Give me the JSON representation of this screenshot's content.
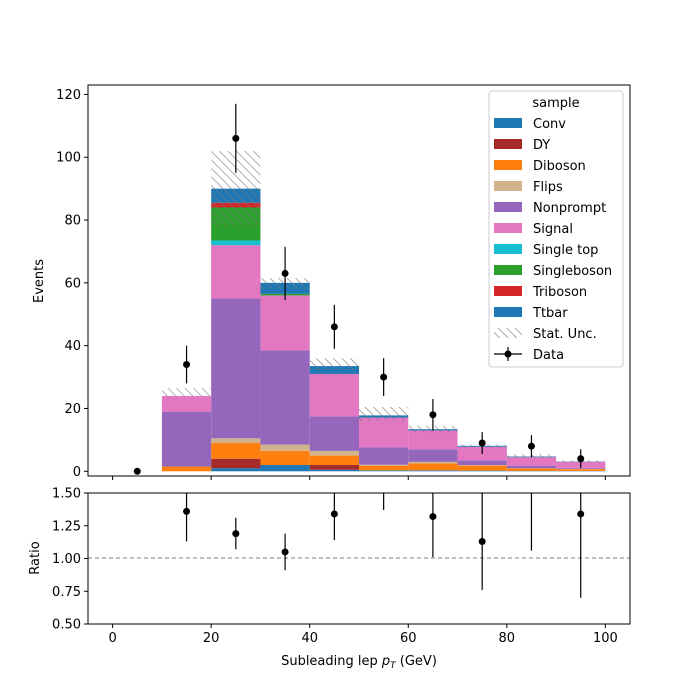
{
  "chart_data": [
    {
      "type": "bar",
      "stacked": true,
      "histogram": true,
      "xlabel": "Subleading lep $p_T$ (GeV)",
      "xlabel_main": "Subleading lep ",
      "xlabel_sym": "p",
      "xlabel_sub": "T",
      "xlabel_unit": " (GeV)",
      "ylabel": "Events",
      "xlim": [
        -5,
        105
      ],
      "ylim": [
        -1.5,
        123
      ],
      "xticks": [
        0,
        20,
        40,
        60,
        80,
        100
      ],
      "yticks": [
        0,
        20,
        40,
        60,
        80,
        100,
        120
      ],
      "bin_edges": [
        0,
        10,
        20,
        30,
        40,
        50,
        60,
        70,
        80,
        90,
        100
      ],
      "series": [
        {
          "name": "Conv",
          "color": "#1f77b4",
          "values": [
            0,
            0,
            1,
            2,
            0.5,
            0.3,
            0.3,
            0.2,
            0.1,
            0.1
          ]
        },
        {
          "name": "DY",
          "color": "#a52a2a",
          "values": [
            0,
            0,
            3,
            0,
            1.5,
            0,
            0,
            0,
            0,
            0
          ]
        },
        {
          "name": "Diboson",
          "color": "#ff7f0e",
          "values": [
            0,
            1.5,
            5,
            4.5,
            3,
            1.5,
            2.2,
            1.6,
            0.8,
            0.6
          ]
        },
        {
          "name": "Flips",
          "color": "#d2b48c",
          "values": [
            0,
            0,
            1.5,
            2,
            1.5,
            0.3,
            0.5,
            0.2,
            0.1,
            0.1
          ]
        },
        {
          "name": "Nonprompt",
          "color": "#9467bd",
          "values": [
            0,
            17.5,
            44.5,
            30,
            11,
            5.5,
            4,
            1.5,
            0.8,
            0.3
          ]
        },
        {
          "name": "Signal",
          "color": "#e377c2",
          "values": [
            0,
            5,
            17,
            17.5,
            13.5,
            9.5,
            6,
            4.3,
            2.7,
            1.9
          ]
        },
        {
          "name": "Single top",
          "color": "#17becf",
          "values": [
            0,
            0,
            1.5,
            0,
            0,
            0,
            0,
            0,
            0,
            0
          ]
        },
        {
          "name": "Singleboson",
          "color": "#2ca02c",
          "values": [
            0,
            0,
            10.5,
            0.5,
            0,
            0,
            0,
            0,
            0,
            0
          ]
        },
        {
          "name": "Triboson",
          "color": "#d62728",
          "values": [
            0,
            0,
            1.5,
            0,
            0,
            0,
            0,
            0,
            0,
            0
          ]
        },
        {
          "name": "Ttbar",
          "color": "#1f77b4",
          "values": [
            0,
            0,
            4.5,
            3.5,
            2.5,
            0.7,
            0.4,
            0.3,
            0.2,
            0.1
          ]
        }
      ],
      "stat_unc": {
        "name": "Stat. Unc.",
        "down": [
          0,
          24,
          78,
          58,
          32,
          16,
          12.5,
          7.5,
          4.3,
          2.6
        ],
        "up": [
          0,
          26.5,
          102,
          61.5,
          36,
          20.5,
          14.5,
          8.5,
          5.5,
          3.5
        ]
      },
      "data_points": {
        "name": "Data",
        "x": [
          5,
          15,
          25,
          35,
          45,
          55,
          65,
          75,
          85,
          95
        ],
        "y": [
          0,
          34,
          106,
          63,
          46,
          30,
          18,
          9,
          8,
          4
        ],
        "err": [
          0,
          6,
          11,
          8.5,
          7,
          6,
          5,
          3.5,
          3.5,
          3
        ]
      },
      "legend": {
        "title": "sample",
        "position": "upper right",
        "entries": [
          "Conv",
          "DY",
          "Diboson",
          "Flips",
          "Nonprompt",
          "Signal",
          "Single top",
          "Singleboson",
          "Triboson",
          "Ttbar",
          "Stat. Unc.",
          "Data"
        ]
      }
    },
    {
      "type": "scatter",
      "xlabel": "Subleading lep $p_T$ (GeV)",
      "ylabel": "Ratio",
      "xlim": [
        -5,
        105
      ],
      "ylim": [
        0.5,
        1.5
      ],
      "xticks": [
        0,
        20,
        40,
        60,
        80,
        100
      ],
      "yticks": [
        "0.50",
        "0.75",
        "1.00",
        "1.25",
        "1.50"
      ],
      "reference_line": 1.0,
      "x": [
        15,
        25,
        35,
        45,
        55,
        65,
        75,
        85,
        95
      ],
      "y": [
        1.36,
        1.19,
        1.05,
        1.34,
        1.55,
        1.32,
        1.13,
        1.6,
        1.34
      ],
      "err_low": [
        0.23,
        0.12,
        0.14,
        0.2,
        0.18,
        0.31,
        0.37,
        0.54,
        0.64
      ],
      "err_high": [
        0.23,
        0.12,
        0.14,
        0.2,
        0.2,
        0.31,
        0.37,
        0.6,
        0.64
      ]
    }
  ]
}
